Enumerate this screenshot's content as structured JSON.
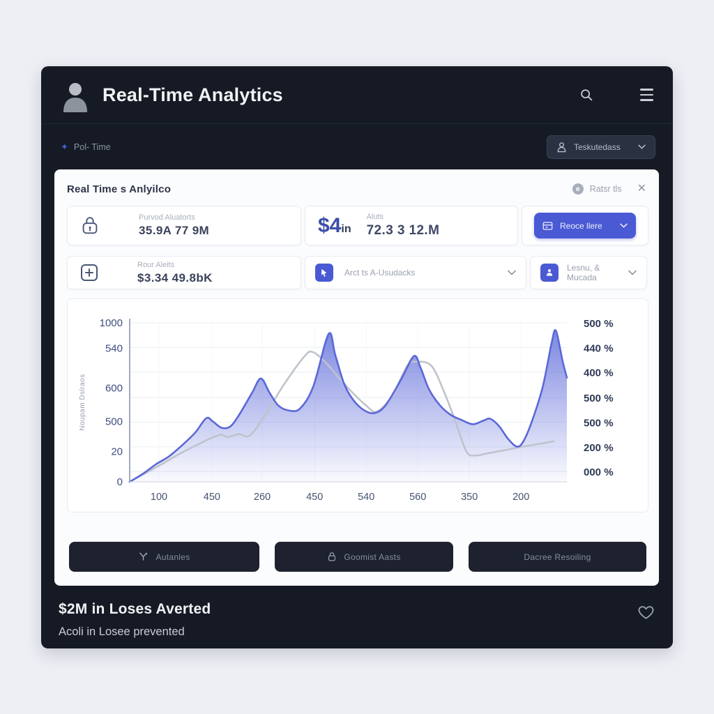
{
  "header": {
    "title": "Real-Time Analytics"
  },
  "subheader": {
    "breadcrumb": "Pol- Time",
    "sparkle_glyph": "✦",
    "dropdown_label": "Teskutedass"
  },
  "panel": {
    "title": "Real Time s Anlyilco",
    "status_label": "Ratsr tls",
    "info_glyph": "e",
    "close_glyph": "✕"
  },
  "cards": {
    "protected": {
      "label": "Purvod Aluatorts",
      "value": "35.9A 77 9M"
    },
    "alerts_big": {
      "prefix_big": "$4",
      "prefix_small": "in",
      "label": "Aluts",
      "value": "72.3 3 12.M"
    },
    "recover_button": {
      "label": "Reoce llere"
    },
    "round_alerts": {
      "label": "Rour Aleits",
      "value": "$3.34 49.8bK"
    },
    "select1": {
      "label": "Arct ts A-Usudacks"
    },
    "select2": {
      "label": "Lesnu, & Mucada"
    }
  },
  "chart_data": {
    "type": "area",
    "title": "",
    "xlabel": "",
    "ylabel": "Noupam Dslraos",
    "ylim": [
      0,
      1000
    ],
    "grid": true,
    "legend": false,
    "left_ticks": [
      {
        "label": "1000",
        "pos": 0
      },
      {
        "label": "540",
        "pos": 0.16
      },
      {
        "label": "600",
        "pos": 0.41
      },
      {
        "label": "500",
        "pos": 0.62
      },
      {
        "label": "20",
        "pos": 0.81
      },
      {
        "label": "0",
        "pos": 1
      }
    ],
    "right_ticks": [
      {
        "label": "500 %",
        "pos": 0
      },
      {
        "label": "440 %",
        "pos": 0.155
      },
      {
        "label": "400 %",
        "pos": 0.31
      },
      {
        "label": "500 %",
        "pos": 0.47
      },
      {
        "label": "500 %",
        "pos": 0.625
      },
      {
        "label": "200 %",
        "pos": 0.78
      },
      {
        "label": "000 %",
        "pos": 0.935
      }
    ],
    "x_ticks": [
      {
        "label": "100",
        "pos": 0.067
      },
      {
        "label": "450",
        "pos": 0.188
      },
      {
        "label": "260",
        "pos": 0.303
      },
      {
        "label": "450",
        "pos": 0.423
      },
      {
        "label": "540",
        "pos": 0.541
      },
      {
        "label": "560",
        "pos": 0.659
      },
      {
        "label": "350",
        "pos": 0.777
      },
      {
        "label": "200",
        "pos": 0.895
      }
    ],
    "series": [
      {
        "name": "primary-area",
        "type": "area",
        "color": "#5b68d8",
        "fill_top": "rgba(101,114,219,0.85)",
        "fill_bottom": "rgba(101,114,219,0.03)",
        "points": [
          [
            0,
            0
          ],
          [
            0.03,
            50
          ],
          [
            0.06,
            110
          ],
          [
            0.09,
            160
          ],
          [
            0.12,
            230
          ],
          [
            0.15,
            310
          ],
          [
            0.175,
            400
          ],
          [
            0.19,
            380
          ],
          [
            0.21,
            340
          ],
          [
            0.23,
            348
          ],
          [
            0.25,
            420
          ],
          [
            0.28,
            560
          ],
          [
            0.3,
            650
          ],
          [
            0.32,
            560
          ],
          [
            0.34,
            480
          ],
          [
            0.365,
            448
          ],
          [
            0.39,
            462
          ],
          [
            0.42,
            600
          ],
          [
            0.455,
            930
          ],
          [
            0.47,
            800
          ],
          [
            0.49,
            620
          ],
          [
            0.51,
            520
          ],
          [
            0.535,
            452
          ],
          [
            0.56,
            432
          ],
          [
            0.585,
            480
          ],
          [
            0.62,
            640
          ],
          [
            0.65,
            790
          ],
          [
            0.665,
            720
          ],
          [
            0.685,
            580
          ],
          [
            0.71,
            480
          ],
          [
            0.735,
            420
          ],
          [
            0.76,
            388
          ],
          [
            0.785,
            362
          ],
          [
            0.81,
            386
          ],
          [
            0.825,
            396
          ],
          [
            0.845,
            350
          ],
          [
            0.865,
            272
          ],
          [
            0.885,
            222
          ],
          [
            0.9,
            252
          ],
          [
            0.92,
            380
          ],
          [
            0.945,
            600
          ],
          [
            0.965,
            872
          ],
          [
            0.975,
            950
          ],
          [
            0.99,
            762
          ],
          [
            1,
            655
          ]
        ]
      },
      {
        "name": "secondary-line",
        "type": "line",
        "color": "#bfc3cb",
        "points": [
          [
            0,
            0
          ],
          [
            0.04,
            60
          ],
          [
            0.08,
            122
          ],
          [
            0.12,
            185
          ],
          [
            0.16,
            240
          ],
          [
            0.19,
            280
          ],
          [
            0.21,
            296
          ],
          [
            0.225,
            282
          ],
          [
            0.25,
            300
          ],
          [
            0.275,
            292
          ],
          [
            0.31,
            420
          ],
          [
            0.35,
            600
          ],
          [
            0.4,
            790
          ],
          [
            0.42,
            815
          ],
          [
            0.45,
            745
          ],
          [
            0.48,
            650
          ],
          [
            0.51,
            560
          ],
          [
            0.54,
            482
          ],
          [
            0.565,
            442
          ],
          [
            0.6,
            540
          ],
          [
            0.635,
            730
          ],
          [
            0.655,
            755
          ],
          [
            0.69,
            730
          ],
          [
            0.72,
            560
          ],
          [
            0.745,
            380
          ],
          [
            0.77,
            192
          ],
          [
            0.79,
            165
          ],
          [
            0.82,
            180
          ],
          [
            0.86,
            200
          ],
          [
            0.9,
            222
          ],
          [
            0.94,
            240
          ],
          [
            0.97,
            255
          ]
        ]
      }
    ]
  },
  "actions": {
    "buttons": [
      {
        "label": "Autanles",
        "icon": "analytics-icon"
      },
      {
        "label": "Goomist Aasts",
        "icon": "lock-icon"
      },
      {
        "label": "Dacree Resoiling",
        "icon": ""
      }
    ]
  },
  "footer": {
    "title": "$2M in Loses Averted",
    "subtitle": "Acoli in Losee prevented"
  },
  "colors": {
    "accent_blue": "#4a59d4",
    "chart_blue": "#5b68d8",
    "chart_gray": "#bfc3cb",
    "window_dark": "#151a24",
    "page_bg": "#edeff5"
  }
}
